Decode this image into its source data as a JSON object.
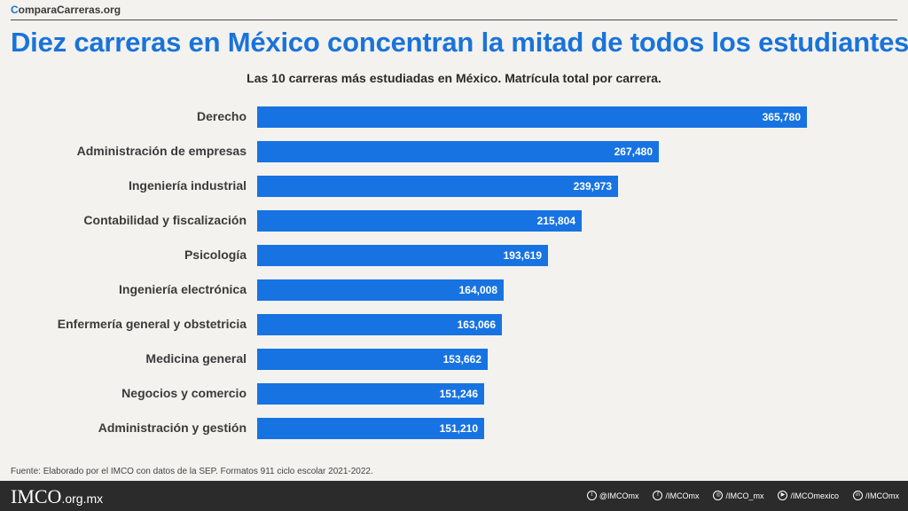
{
  "brand": {
    "first_letter": "C",
    "rest": "omparaCarreras.org"
  },
  "chart_data": {
    "type": "bar",
    "orientation": "horizontal",
    "title": "Diez carreras en México concentran la mitad de todos los estudiantes",
    "subtitle": "Las 10 carreras más estudiadas en México. Matrícula total por carrera.",
    "categories": [
      "Derecho",
      "Administración de empresas",
      "Ingeniería industrial",
      "Contabilidad y fiscalización",
      "Psicología",
      "Ingeniería electrónica",
      "Enfermería general y obstetricia",
      "Medicina general",
      "Negocios y comercio",
      "Administración y gestión"
    ],
    "values": [
      365780,
      267480,
      239973,
      215804,
      193619,
      164008,
      163066,
      153662,
      151246,
      151210
    ],
    "value_labels": [
      "365,780",
      "267,480",
      "239,973",
      "215,804",
      "193,619",
      "164,008",
      "163,066",
      "153,662",
      "151,246",
      "151,210"
    ],
    "xlim": [
      0,
      365780
    ],
    "bar_color": "#1773e2",
    "grid": false,
    "legend": "none"
  },
  "source": "Fuente: Elaborado por el IMCO con datos de la SEP. Formatos 911 ciclo escolar 2021-2022.",
  "footer": {
    "logo_text": "IMCO",
    "logo_domain": ".org.mx",
    "socials": [
      {
        "icon": "twitter-icon",
        "glyph": "t",
        "handle": "@IMCOmx"
      },
      {
        "icon": "facebook-icon",
        "glyph": "f",
        "handle": "/IMCOmx"
      },
      {
        "icon": "instagram-icon",
        "glyph": "◎",
        "handle": "/IMCO_mx"
      },
      {
        "icon": "youtube-icon",
        "glyph": "▶",
        "handle": "/IMCOmexico"
      },
      {
        "icon": "linkedin-icon",
        "glyph": "in",
        "handle": "/IMCOmx"
      }
    ]
  }
}
